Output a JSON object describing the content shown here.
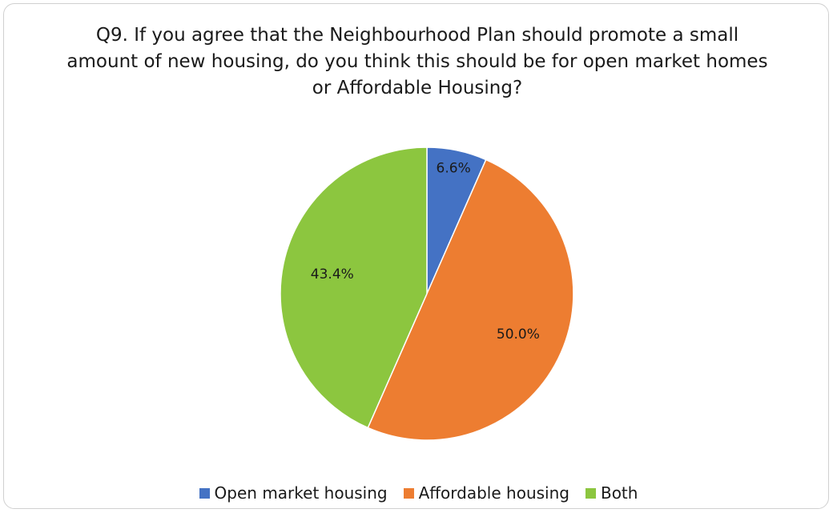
{
  "chart_data": {
    "type": "pie",
    "title": "Q9. If you agree that the Neighbourhood Plan should promote a small amount of new housing, do you think this should be for open market homes or Affordable Housing?",
    "categories": [
      "Open market housing",
      "Affordable housing",
      "Both"
    ],
    "values": [
      6.6,
      50.0,
      43.4
    ],
    "labels": [
      "6.6%",
      "50.0%",
      "43.4%"
    ],
    "colors": [
      "#4472c4",
      "#ed7d31",
      "#8cc63f"
    ],
    "start_angle": "12 o'clock",
    "direction": "clockwise",
    "legend": "bottom"
  }
}
